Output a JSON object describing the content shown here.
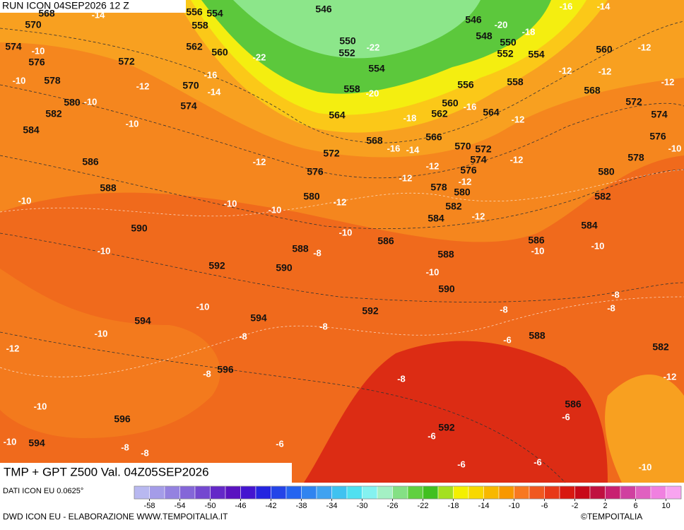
{
  "header": {
    "run": "RUN ICON 04SEP2026 12 Z",
    "title": "TMP + GPT Z500 Val. 04Z05SEP2026"
  },
  "map": {
    "gpt_labels": [
      "568",
      "570",
      "574",
      "576",
      "578",
      "580",
      "582",
      "584",
      "586",
      "588",
      "590",
      "592",
      "594",
      "596",
      "596",
      "594",
      "594",
      "590",
      "588",
      "592",
      "586",
      "588",
      "590",
      "588",
      "586",
      "592",
      "582",
      "584",
      "586",
      "582",
      "580",
      "578",
      "576",
      "574",
      "572",
      "568",
      "560",
      "572",
      "570",
      "574",
      "562",
      "560",
      "558",
      "556",
      "554",
      "546",
      "550",
      "552",
      "554",
      "558",
      "564",
      "568",
      "572",
      "576",
      "580",
      "546",
      "548",
      "550",
      "552",
      "554",
      "556",
      "558",
      "560",
      "562",
      "564",
      "566",
      "570",
      "572",
      "574",
      "576",
      "578",
      "580",
      "582",
      "584"
    ],
    "temp_labels": [
      "-14",
      "-10",
      "-10",
      "-10",
      "-12",
      "-16",
      "-14",
      "-22",
      "-22",
      "-20",
      "-18",
      "-16",
      "-14",
      "-12",
      "-12",
      "-12",
      "-12",
      "-10",
      "-10",
      "-12",
      "-10",
      "-10",
      "-10",
      "-10",
      "-10",
      "-12",
      "-10",
      "-10",
      "-8",
      "-8",
      "-8",
      "-8",
      "-8",
      "-8",
      "-10",
      "-8",
      "-6",
      "-6",
      "-6",
      "-6",
      "-6",
      "-6",
      "-8",
      "-10",
      "-10",
      "-10",
      "-12",
      "-12",
      "-12",
      "-12",
      "-12",
      "-12",
      "-12",
      "-10",
      "-14",
      "-16",
      "-18",
      "-20",
      "-16",
      "-8",
      "-8",
      "-12",
      "-10"
    ]
  },
  "legend": {
    "colors": [
      "#b8b8f0",
      "#a49ce8",
      "#9482e0",
      "#8466d8",
      "#7448d0",
      "#6428c8",
      "#5a12c0",
      "#4414d0",
      "#2424e0",
      "#2444e8",
      "#2464f0",
      "#3084f0",
      "#40a2f0",
      "#40c2f0",
      "#50e0f0",
      "#84f2f0",
      "#a4f0c4",
      "#84e084",
      "#60d040",
      "#40c020",
      "#a4e020",
      "#f4f000",
      "#f8d800",
      "#f8b800",
      "#f89800",
      "#f87820",
      "#f05820",
      "#e83818",
      "#d81810",
      "#c80818",
      "#c01040",
      "#c82070",
      "#d040a0",
      "#e060c0",
      "#f080e0",
      "#f8a4f0"
    ],
    "ticks": [
      "-58",
      "-54",
      "-50",
      "-46",
      "-42",
      "-38",
      "-34",
      "-30",
      "-26",
      "-22",
      "-18",
      "-14",
      "-10",
      "-6",
      "-2",
      "2",
      "6",
      "10"
    ]
  },
  "footer": {
    "source": "DATI ICON EU 0.0625°",
    "credit": "DWD ICON EU - ELABORAZIONE WWW.TEMPOITALIA.IT",
    "brand": "©TEMPOITALIA"
  }
}
